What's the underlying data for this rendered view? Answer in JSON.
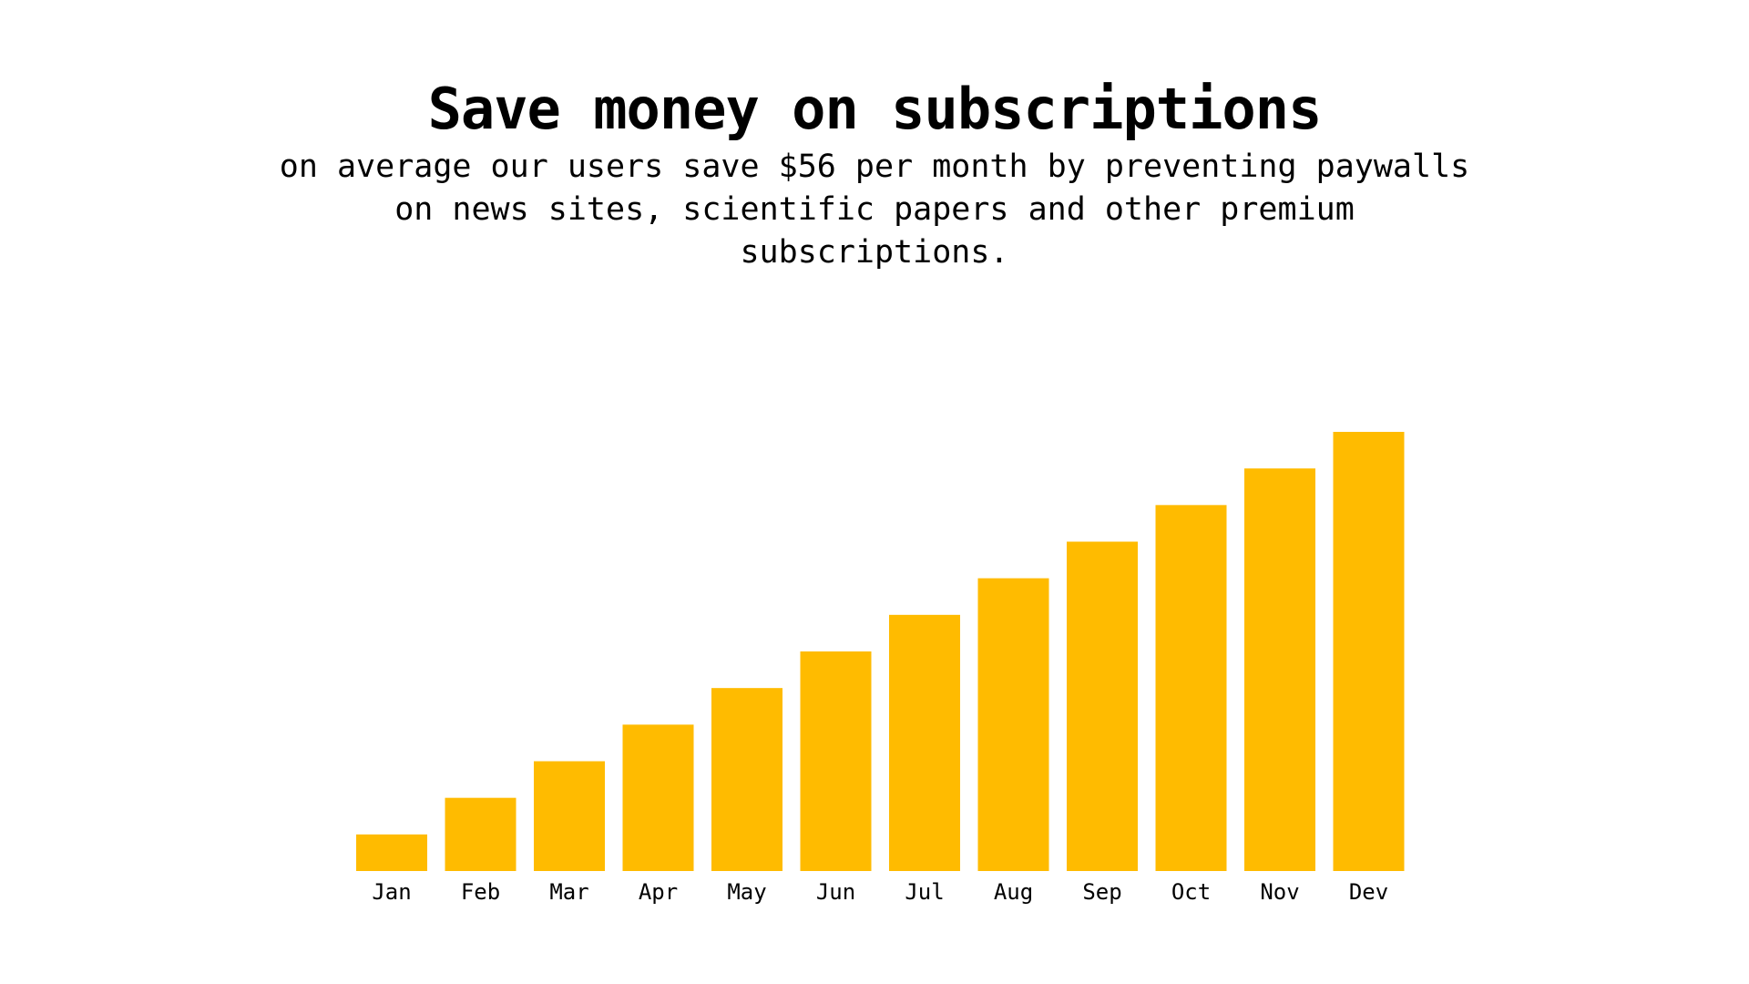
{
  "header": {
    "title": "Save money on subscriptions",
    "subtitle": "on average our users save $56 per month by preventing paywalls on news sites, scientific papers and other premium subscriptions."
  },
  "chart_data": {
    "type": "bar",
    "categories": [
      "Jan",
      "Feb",
      "Mar",
      "Apr",
      "May",
      "Jun",
      "Jul",
      "Aug",
      "Sep",
      "Oct",
      "Nov",
      "Dev"
    ],
    "values": [
      1,
      2,
      3,
      4,
      5,
      6,
      7,
      8,
      9,
      10,
      11,
      12
    ],
    "ylim": [
      0,
      12
    ],
    "title": "",
    "xlabel": "",
    "ylabel": "",
    "grid": false,
    "legend": "none",
    "bar_color": "#FFBB00"
  }
}
